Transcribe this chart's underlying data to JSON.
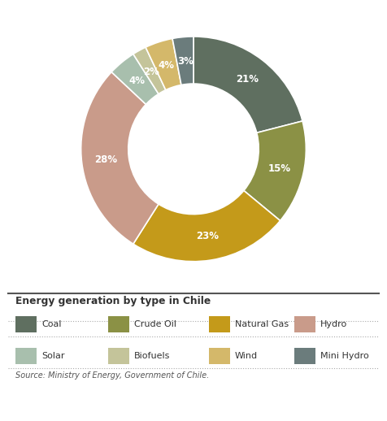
{
  "labels": [
    "Coal",
    "Crude Oil",
    "Natural Gas",
    "Hydro",
    "Solar",
    "Biofuels",
    "Wind",
    "Mini Hydro"
  ],
  "values": [
    21,
    15,
    23,
    28,
    4,
    2,
    4,
    3
  ],
  "colors": [
    "#5f6f60",
    "#8b9145",
    "#c49a1a",
    "#c99b8a",
    "#a8bfad",
    "#c4c49a",
    "#d4b86a",
    "#6b7c7c"
  ],
  "title": "Energy generation by type in Chile",
  "source": "Source: Ministry of Energy, Government of Chile.",
  "background_color": "#ffffff",
  "text_color_white": "#ffffff",
  "legend_title_color": "#333333",
  "legend_text_color": "#333333",
  "source_color": "#555555",
  "separator_color": "#555555",
  "dot_line_color": "#aaaaaa"
}
